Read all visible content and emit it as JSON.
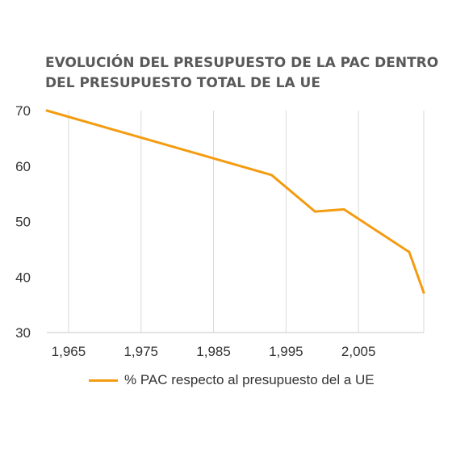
{
  "chart_data": {
    "type": "line",
    "title_lines": [
      "EVOLUCIÓN DEL PRESUPUESTO DE LA PAC DENTRO",
      "DEL PRESUPUESTO TOTAL DE LA UE"
    ],
    "xlabel": "",
    "ylabel": "",
    "x_range": [
      1962,
      2014
    ],
    "y_range": [
      30,
      70
    ],
    "x_ticks": [
      1965,
      1975,
      1985,
      1995,
      2005
    ],
    "x_tick_labels": [
      "1,965",
      "1,975",
      "1,985",
      "1,995",
      "2,005"
    ],
    "y_ticks": [
      30,
      40,
      50,
      60,
      70
    ],
    "y_tick_labels": [
      "30",
      "40",
      "50",
      "60",
      "70"
    ],
    "grid": "vertical",
    "legend_position": "bottom",
    "series": [
      {
        "name": "% PAC respecto al presupuesto del a UE",
        "color": "#f39c12",
        "points": [
          {
            "x": 1962,
            "y": 70
          },
          {
            "x": 1993,
            "y": 58.4
          },
          {
            "x": 1999,
            "y": 51.8
          },
          {
            "x": 2003,
            "y": 52.2
          },
          {
            "x": 2012,
            "y": 44.5
          },
          {
            "x": 2014,
            "y": 37.2
          }
        ]
      }
    ]
  }
}
